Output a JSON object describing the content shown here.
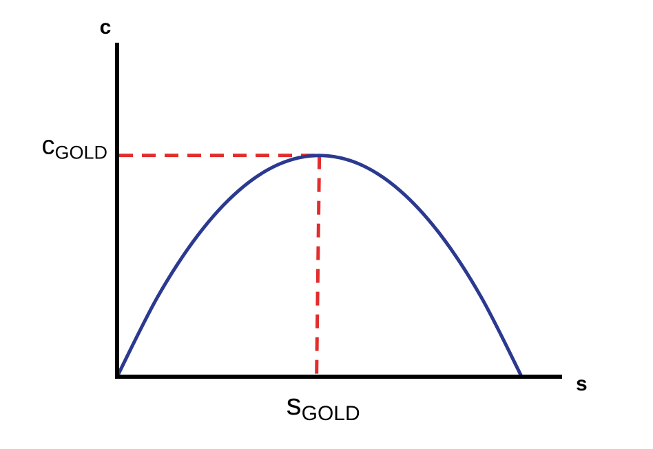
{
  "chart_data": {
    "type": "line",
    "xlabel": "s",
    "ylabel": "c",
    "xlim": [
      0,
      1.1
    ],
    "ylim": [
      0,
      1.5
    ],
    "series": [
      {
        "color": "#2b3990",
        "x": [
          0,
          0.1,
          0.2,
          0.3,
          0.4,
          0.5,
          0.6,
          0.7,
          0.8,
          0.9,
          1.0
        ],
        "y": [
          0,
          0.36,
          0.64,
          0.84,
          0.96,
          1.0,
          0.96,
          0.84,
          0.64,
          0.36,
          0
        ]
      }
    ],
    "annotations": [
      {
        "kind": "golden-rule",
        "x": 0.5,
        "y": 1.0,
        "x_label": {
          "main": "s",
          "sub": "GOLD"
        },
        "y_label": {
          "main": "c",
          "sub": "GOLD"
        },
        "color": "#e32d2d"
      }
    ],
    "grid": false,
    "legend": "none"
  }
}
